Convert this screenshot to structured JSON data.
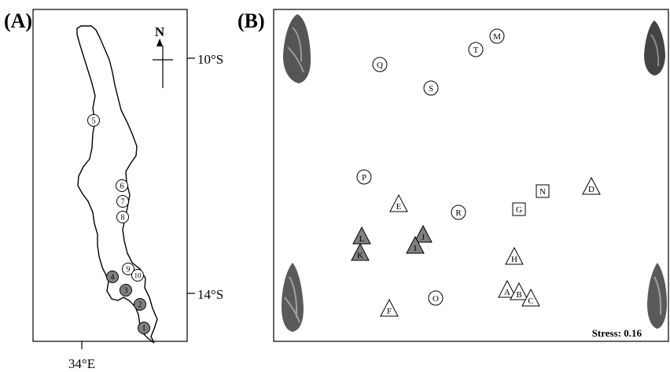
{
  "panels": {
    "a": {
      "label": "(A)",
      "north_label": "N",
      "lat_labels": [
        "10°S",
        "14°S"
      ],
      "lon_label": "34°E",
      "sites": [
        {
          "id": "1",
          "shaded": true
        },
        {
          "id": "2",
          "shaded": true
        },
        {
          "id": "3",
          "shaded": true
        },
        {
          "id": "4",
          "shaded": true
        },
        {
          "id": "5",
          "shaded": false
        },
        {
          "id": "6",
          "shaded": false
        },
        {
          "id": "7",
          "shaded": false
        },
        {
          "id": "8",
          "shaded": false
        },
        {
          "id": "9",
          "shaded": false
        },
        {
          "id": "10",
          "shaded": false
        }
      ]
    },
    "b": {
      "label": "(B)",
      "stress": "Stress: 0.16",
      "samples": [
        {
          "label": "M",
          "shape": "circle",
          "filled": false
        },
        {
          "label": "T",
          "shape": "circle",
          "filled": false
        },
        {
          "label": "Q",
          "shape": "circle",
          "filled": false
        },
        {
          "label": "S",
          "shape": "circle",
          "filled": false
        },
        {
          "label": "P",
          "shape": "circle",
          "filled": false
        },
        {
          "label": "R",
          "shape": "circle",
          "filled": false
        },
        {
          "label": "O",
          "shape": "circle",
          "filled": false
        },
        {
          "label": "N",
          "shape": "square",
          "filled": false
        },
        {
          "label": "G",
          "shape": "square",
          "filled": false
        },
        {
          "label": "D",
          "shape": "triangle",
          "filled": false
        },
        {
          "label": "E",
          "shape": "triangle",
          "filled": false
        },
        {
          "label": "H",
          "shape": "triangle",
          "filled": false
        },
        {
          "label": "A",
          "shape": "triangle",
          "filled": false
        },
        {
          "label": "B",
          "shape": "triangle",
          "filled": false
        },
        {
          "label": "C",
          "shape": "triangle",
          "filled": false
        },
        {
          "label": "F",
          "shape": "triangle",
          "filled": false
        },
        {
          "label": "L",
          "shape": "triangle",
          "filled": true
        },
        {
          "label": "K",
          "shape": "triangle",
          "filled": true
        },
        {
          "label": "J",
          "shape": "triangle",
          "filled": true
        },
        {
          "label": "I",
          "shape": "triangle",
          "filled": true
        }
      ]
    }
  },
  "colors": {
    "line": "#000000",
    "marker_fill_shaded": "#808080",
    "marker_fill_open": "#ffffff",
    "shell": "#4a4a4a"
  }
}
